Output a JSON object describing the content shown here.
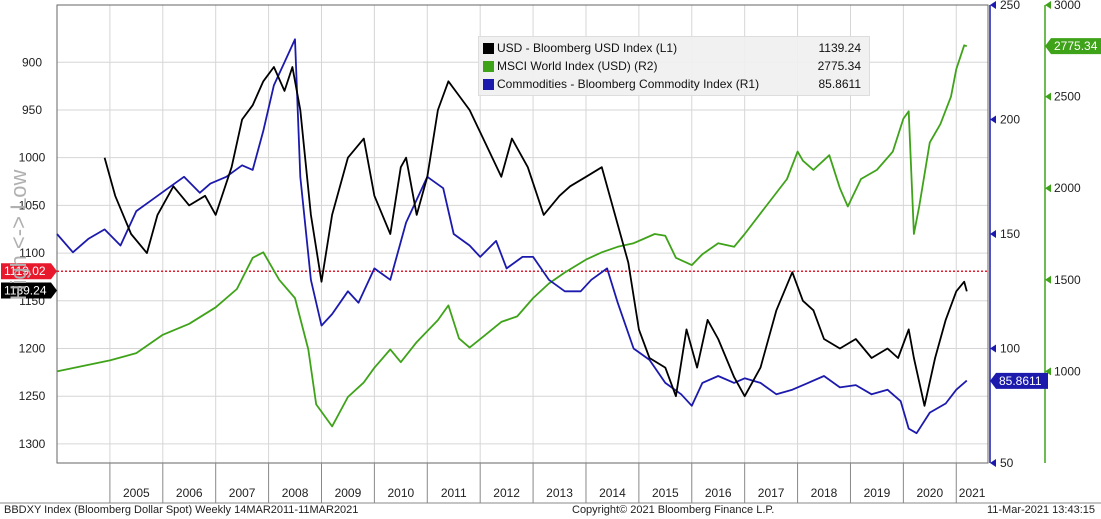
{
  "chart_data": {
    "type": "line",
    "ylabel": "High <-> Low",
    "x_ticks": [
      "2005",
      "2006",
      "2007",
      "2008",
      "2009",
      "2010",
      "2011",
      "2012",
      "2013",
      "2014",
      "2015",
      "2016",
      "2017",
      "2018",
      "2019",
      "2020",
      "2021"
    ],
    "axes": {
      "left": {
        "inverted": true,
        "min": 840,
        "max": 1320,
        "ticks": [
          "900",
          "950",
          "1000",
          "1050",
          "1100",
          "1150",
          "1200",
          "1250",
          "1300"
        ]
      },
      "right1": {
        "min": 50,
        "max": 250,
        "ticks": [
          "50",
          "100",
          "150",
          "200",
          "250"
        ]
      },
      "right2": {
        "min": 500,
        "max": 3000,
        "ticks": [
          "1000",
          "1500",
          "2000",
          "2500",
          "3000"
        ]
      }
    },
    "reference_line": {
      "value": 1119.02,
      "label": "1119.02",
      "color": "#e8192c"
    },
    "series": [
      {
        "name": "USD - Bloomberg USD Index (L1)",
        "value": "1139.24",
        "color": "#000000",
        "axis": "left",
        "label": "1139.24",
        "x": [
          2004.9,
          2005.1,
          2005.4,
          2005.7,
          2005.9,
          2006.2,
          2006.5,
          2006.8,
          2007.0,
          2007.3,
          2007.5,
          2007.7,
          2007.9,
          2008.1,
          2008.3,
          2008.45,
          2008.6,
          2008.8,
          2009.0,
          2009.2,
          2009.5,
          2009.8,
          2010.0,
          2010.3,
          2010.5,
          2010.6,
          2010.8,
          2011.0,
          2011.2,
          2011.4,
          2011.6,
          2011.8,
          2012.1,
          2012.4,
          2012.6,
          2012.9,
          2013.2,
          2013.5,
          2013.7,
          2014.0,
          2014.3,
          2014.6,
          2014.8,
          2015.0,
          2015.2,
          2015.5,
          2015.7,
          2015.9,
          2016.1,
          2016.3,
          2016.5,
          2016.8,
          2017.0,
          2017.3,
          2017.6,
          2017.9,
          2018.1,
          2018.3,
          2018.5,
          2018.8,
          2019.1,
          2019.4,
          2019.7,
          2019.9,
          2020.1,
          2020.2,
          2020.4,
          2020.6,
          2020.8,
          2021.0,
          2021.15,
          2021.2
        ],
        "y": [
          1000,
          1040,
          1080,
          1100,
          1060,
          1030,
          1050,
          1040,
          1060,
          1010,
          960,
          945,
          920,
          905,
          930,
          905,
          950,
          1060,
          1130,
          1060,
          1000,
          980,
          1040,
          1080,
          1010,
          1000,
          1060,
          1020,
          950,
          920,
          935,
          950,
          985,
          1020,
          980,
          1010,
          1060,
          1040,
          1030,
          1020,
          1010,
          1070,
          1110,
          1180,
          1210,
          1220,
          1250,
          1180,
          1220,
          1170,
          1190,
          1230,
          1250,
          1220,
          1160,
          1120,
          1150,
          1160,
          1190,
          1200,
          1190,
          1210,
          1200,
          1210,
          1180,
          1210,
          1260,
          1210,
          1170,
          1140,
          1130,
          1140
        ]
      },
      {
        "name": "MSCI World Index (USD) (R2)",
        "value": "2775.34",
        "color": "#3fa31a",
        "axis": "right2",
        "label": "2775.34",
        "x": [
          2004.0,
          2004.5,
          2005.0,
          2005.5,
          2006.0,
          2006.5,
          2007.0,
          2007.4,
          2007.7,
          2007.9,
          2008.2,
          2008.5,
          2008.75,
          2008.9,
          2009.2,
          2009.5,
          2009.8,
          2010.0,
          2010.3,
          2010.5,
          2010.8,
          2011.2,
          2011.4,
          2011.6,
          2011.8,
          2012.1,
          2012.4,
          2012.7,
          2013.0,
          2013.3,
          2013.6,
          2014.0,
          2014.3,
          2014.6,
          2014.9,
          2015.3,
          2015.5,
          2015.7,
          2016.0,
          2016.2,
          2016.5,
          2016.8,
          2017.0,
          2017.4,
          2017.8,
          2018.0,
          2018.1,
          2018.3,
          2018.6,
          2018.8,
          2018.95,
          2019.2,
          2019.5,
          2019.8,
          2020.0,
          2020.1,
          2020.2,
          2020.3,
          2020.5,
          2020.7,
          2020.9,
          2021.0,
          2021.15,
          2021.2
        ],
        "y": [
          1000,
          1030,
          1060,
          1100,
          1200,
          1260,
          1350,
          1450,
          1620,
          1650,
          1500,
          1400,
          1120,
          820,
          700,
          860,
          940,
          1020,
          1120,
          1050,
          1160,
          1280,
          1360,
          1180,
          1130,
          1200,
          1270,
          1300,
          1400,
          1480,
          1540,
          1610,
          1650,
          1680,
          1700,
          1750,
          1740,
          1620,
          1580,
          1640,
          1700,
          1680,
          1750,
          1900,
          2050,
          2200,
          2150,
          2100,
          2180,
          2000,
          1900,
          2050,
          2100,
          2200,
          2380,
          2420,
          1750,
          1900,
          2250,
          2350,
          2500,
          2650,
          2780,
          2775
        ]
      },
      {
        "name": "Commodities - Bloomberg Commodity Index (R1)",
        "value": "85.8611",
        "color": "#1c1aad",
        "axis": "right1",
        "label": "85.8611",
        "x": [
          2004.0,
          2004.3,
          2004.6,
          2004.9,
          2005.2,
          2005.5,
          2005.8,
          2006.1,
          2006.4,
          2006.7,
          2006.9,
          2007.2,
          2007.5,
          2007.7,
          2007.9,
          2008.1,
          2008.3,
          2008.5,
          2008.6,
          2008.8,
          2009.0,
          2009.2,
          2009.5,
          2009.7,
          2010.0,
          2010.3,
          2010.6,
          2010.9,
          2011.0,
          2011.3,
          2011.5,
          2011.8,
          2012.0,
          2012.3,
          2012.5,
          2012.8,
          2013.0,
          2013.3,
          2013.6,
          2013.9,
          2014.1,
          2014.4,
          2014.6,
          2014.9,
          2015.2,
          2015.5,
          2015.8,
          2016.0,
          2016.2,
          2016.5,
          2016.8,
          2017.0,
          2017.3,
          2017.6,
          2017.9,
          2018.2,
          2018.5,
          2018.8,
          2019.1,
          2019.4,
          2019.7,
          2019.95,
          2020.1,
          2020.25,
          2020.5,
          2020.8,
          2021.0,
          2021.2
        ],
        "y": [
          150,
          142,
          148,
          152,
          145,
          160,
          165,
          170,
          175,
          168,
          172,
          175,
          180,
          178,
          195,
          215,
          225,
          235,
          175,
          130,
          110,
          115,
          125,
          120,
          135,
          130,
          155,
          170,
          175,
          170,
          150,
          145,
          140,
          147,
          135,
          140,
          140,
          130,
          125,
          125,
          130,
          135,
          120,
          100,
          95,
          85,
          80,
          75,
          85,
          88,
          85,
          87,
          85,
          80,
          82,
          85,
          88,
          83,
          84,
          80,
          82,
          77,
          65,
          63,
          72,
          76,
          82,
          86
        ]
      }
    ]
  },
  "footer": {
    "left": "BBDXY Index (Bloomberg Dollar Spot)  Weekly 14MAR2011-11MAR2021",
    "center": "Copyright© 2021 Bloomberg Finance L.P.",
    "right": "11-Mar-2021 13:43:15"
  }
}
